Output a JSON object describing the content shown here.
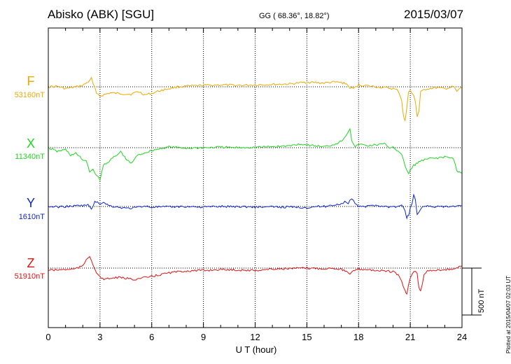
{
  "header": {
    "station": "Abisko (ABK)  [SGU]",
    "coords": "GG ( 68.36°,  18.82°)",
    "date": "2015/03/07"
  },
  "plotted": "Plotted at 2015/04/07 02:03 UT",
  "scale_bar": {
    "label": "500 nT",
    "nT": 500
  },
  "chart_data": {
    "type": "line",
    "xlabel": "U T (hour)",
    "xlim": [
      0,
      24
    ],
    "xticks": [
      0,
      3,
      6,
      9,
      12,
      15,
      18,
      21,
      24
    ],
    "grid": true,
    "series": [
      {
        "name": "F",
        "baseline_label": "53160nT",
        "baseline": 53160,
        "color": "#f0a800",
        "x": [
          0,
          0.5,
          1,
          1.5,
          2,
          2.3,
          2.5,
          2.6,
          2.8,
          3,
          3.3,
          3.6,
          4,
          4.4,
          4.8,
          5.2,
          5.6,
          6,
          6.5,
          7,
          7.5,
          8,
          9,
          10,
          11,
          12,
          13,
          14,
          14.5,
          15,
          15.5,
          16,
          16.5,
          17,
          17.3,
          17.5,
          17.7,
          18,
          18.5,
          19,
          19.5,
          20,
          20.3,
          20.5,
          20.6,
          20.7,
          20.8,
          20.9,
          21,
          21.2,
          21.3,
          21.4,
          21.5,
          21.6,
          21.8,
          22,
          22.5,
          23,
          23.5,
          23.7,
          24
        ],
        "values": [
          53160,
          53165,
          53140,
          53155,
          53175,
          53210,
          53250,
          53190,
          53100,
          53060,
          53080,
          53095,
          53090,
          53085,
          53080,
          53110,
          53075,
          53090,
          53120,
          53140,
          53160,
          53165,
          53175,
          53180,
          53175,
          53180,
          53185,
          53190,
          53200,
          53210,
          53205,
          53200,
          53210,
          53205,
          53190,
          53150,
          53140,
          53180,
          53170,
          53160,
          53150,
          53140,
          53120,
          53020,
          52850,
          52790,
          52950,
          53100,
          53120,
          53060,
          53000,
          52840,
          52900,
          53100,
          53130,
          53140,
          53150,
          53140,
          53160,
          53110,
          53160
        ]
      },
      {
        "name": "X",
        "baseline_label": "11340nT",
        "baseline": 11340,
        "color": "#1ed71e",
        "x": [
          0,
          0.5,
          1,
          1.3,
          1.6,
          2,
          2.2,
          2.4,
          2.6,
          2.8,
          3,
          3.2,
          3.5,
          3.8,
          4,
          4.2,
          4.5,
          4.8,
          5,
          5.2,
          5.5,
          6,
          6.5,
          7,
          7.5,
          8,
          9,
          10,
          11,
          12,
          13,
          14,
          14.5,
          15,
          15.5,
          16,
          16.5,
          17,
          17.3,
          17.5,
          17.6,
          17.8,
          18,
          18.5,
          19,
          19.5,
          19.8,
          20,
          20.3,
          20.5,
          20.7,
          20.9,
          21,
          21.2,
          21.5,
          22,
          22.5,
          23,
          23.5,
          23.7,
          24
        ],
        "values": [
          11340,
          11300,
          11320,
          11260,
          11280,
          11210,
          11200,
          11090,
          11100,
          11050,
          10990,
          11160,
          11190,
          11240,
          11260,
          11300,
          11220,
          11170,
          11220,
          11260,
          11280,
          11310,
          11330,
          11350,
          11340,
          11335,
          11340,
          11345,
          11340,
          11345,
          11350,
          11360,
          11380,
          11370,
          11360,
          11350,
          11370,
          11410,
          11480,
          11550,
          11420,
          11340,
          11380,
          11360,
          11370,
          11380,
          11340,
          11350,
          11300,
          11260,
          11150,
          11060,
          11100,
          11150,
          11190,
          11220,
          11230,
          11240,
          11230,
          11090,
          11070
        ]
      },
      {
        "name": "Y",
        "baseline_label": "1610nT",
        "baseline": 1610,
        "color": "#0b24d8",
        "x": [
          0,
          0.5,
          1,
          1.5,
          2,
          2.3,
          2.5,
          2.7,
          3,
          3.2,
          3.5,
          3.8,
          4,
          4.5,
          5,
          5.5,
          6,
          7,
          8,
          9,
          10,
          11,
          12,
          13,
          14,
          15,
          15.5,
          16,
          16.5,
          17,
          17.2,
          17.4,
          17.6,
          17.8,
          18,
          18.5,
          19,
          19.5,
          20,
          20.3,
          20.5,
          20.7,
          20.8,
          20.9,
          21,
          21.1,
          21.2,
          21.3,
          21.4,
          21.6,
          21.8,
          22,
          23,
          24
        ],
        "values": [
          1610,
          1605,
          1610,
          1615,
          1620,
          1625,
          1585,
          1660,
          1640,
          1660,
          1620,
          1610,
          1605,
          1590,
          1595,
          1615,
          1605,
          1605,
          1610,
          1605,
          1610,
          1610,
          1605,
          1605,
          1605,
          1600,
          1610,
          1610,
          1625,
          1640,
          1660,
          1640,
          1700,
          1630,
          1615,
          1610,
          1625,
          1610,
          1605,
          1610,
          1620,
          1560,
          1490,
          1520,
          1590,
          1650,
          1730,
          1680,
          1520,
          1590,
          1620,
          1610,
          1605,
          1615
        ]
      },
      {
        "name": "Z",
        "baseline_label": "51910nT",
        "baseline": 51910,
        "color": "#e81010",
        "x": [
          0,
          0.5,
          1,
          1.5,
          2,
          2.2,
          2.4,
          2.6,
          2.8,
          3,
          3.3,
          3.6,
          4,
          4.5,
          5,
          5.5,
          6,
          6.5,
          7,
          8,
          9,
          10,
          11,
          12,
          13,
          14,
          15,
          16,
          16.5,
          17,
          17.3,
          17.5,
          17.7,
          18,
          18.5,
          19,
          19.5,
          20,
          20.3,
          20.5,
          20.7,
          20.8,
          21,
          21.2,
          21.4,
          21.5,
          21.6,
          21.8,
          22,
          22.5,
          23,
          23.5,
          24
        ],
        "values": [
          51890,
          51890,
          51895,
          51900,
          51930,
          52000,
          52040,
          51950,
          51860,
          51810,
          51790,
          51800,
          51810,
          51800,
          51790,
          51805,
          51820,
          51840,
          51860,
          51880,
          51885,
          51895,
          51890,
          51885,
          51900,
          51905,
          51910,
          51905,
          51910,
          51900,
          51870,
          51840,
          51880,
          51900,
          51895,
          51885,
          51880,
          51870,
          51840,
          51760,
          51660,
          51640,
          51810,
          51880,
          51850,
          51700,
          51660,
          51840,
          51880,
          51890,
          51895,
          51900,
          51930
        ]
      }
    ]
  }
}
